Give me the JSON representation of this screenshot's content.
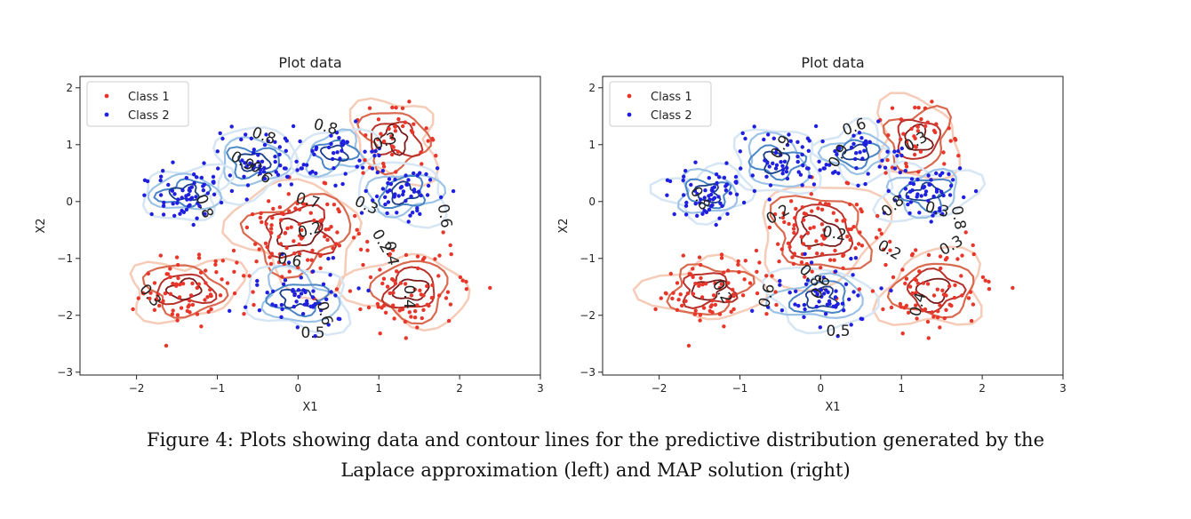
{
  "chart_data": [
    {
      "type": "scatter",
      "title": "Plot data",
      "xlabel": "X1",
      "ylabel": "X2",
      "xlim": [
        -2.7,
        3.0
      ],
      "ylim": [
        -3.05,
        2.2
      ],
      "xticks": [
        -2,
        -1,
        0,
        1,
        2,
        3
      ],
      "yticks": [
        -3,
        -2,
        -1,
        0,
        1,
        2
      ],
      "tick_labels_x": [
        "−2",
        "−1",
        "0",
        "1",
        "2",
        "3"
      ],
      "tick_labels_y": [
        "−3",
        "−2",
        "−1",
        "0",
        "1",
        "2"
      ],
      "legend": {
        "placement": "top-left",
        "entries": [
          {
            "name": "Class 1",
            "color": "#e8372a"
          },
          {
            "name": "Class 2",
            "color": "#1f1fe0"
          }
        ]
      },
      "series": [
        {
          "name": "Class 1",
          "color": "#e8372a",
          "clusters": [
            {
              "cx": -1.4,
              "cy": -1.55,
              "sx": 0.35,
              "sy": 0.3,
              "n": 70
            },
            {
              "cx": 0.0,
              "cy": -0.55,
              "sx": 0.45,
              "sy": 0.45,
              "n": 95
            },
            {
              "cx": 1.4,
              "cy": -1.55,
              "sx": 0.35,
              "sy": 0.35,
              "n": 70
            },
            {
              "cx": 1.2,
              "cy": 1.1,
              "sx": 0.3,
              "sy": 0.35,
              "n": 40
            }
          ]
        },
        {
          "name": "Class 2",
          "color": "#1f1fe0",
          "clusters": [
            {
              "cx": -0.55,
              "cy": 0.7,
              "sx": 0.3,
              "sy": 0.3,
              "n": 55
            },
            {
              "cx": 0.45,
              "cy": 0.85,
              "sx": 0.25,
              "sy": 0.25,
              "n": 40
            },
            {
              "cx": -1.4,
              "cy": 0.15,
              "sx": 0.28,
              "sy": 0.25,
              "n": 55
            },
            {
              "cx": 1.3,
              "cy": 0.15,
              "sx": 0.3,
              "sy": 0.28,
              "n": 55
            },
            {
              "cx": 0.0,
              "cy": -1.7,
              "sx": 0.35,
              "sy": 0.3,
              "n": 55
            }
          ]
        }
      ],
      "contour_labels": [
        "0.8",
        "0.8",
        "0.3",
        "0.9",
        "0.6",
        "0.8",
        "0.7",
        "0.3",
        "0.6",
        "0.2",
        "0.2",
        "0.6",
        "0.3",
        "0.4",
        "0.6",
        "0.5",
        "0.4"
      ]
    },
    {
      "type": "scatter",
      "title": "Plot data",
      "xlabel": "X1",
      "ylabel": "X2",
      "xlim": [
        -2.7,
        3.0
      ],
      "ylim": [
        -3.05,
        2.2
      ],
      "xticks": [
        -2,
        -1,
        0,
        1,
        2,
        3
      ],
      "yticks": [
        -3,
        -2,
        -1,
        0,
        1,
        2
      ],
      "tick_labels_x": [
        "−2",
        "−1",
        "0",
        "1",
        "2",
        "3"
      ],
      "tick_labels_y": [
        "−3",
        "−2",
        "−1",
        "0",
        "1",
        "2"
      ],
      "legend": {
        "placement": "top-left",
        "entries": [
          {
            "name": "Class 1",
            "color": "#e8372a"
          },
          {
            "name": "Class 2",
            "color": "#1f1fe0"
          }
        ]
      },
      "series": [
        {
          "name": "Class 1",
          "color": "#e8372a",
          "clusters": [
            {
              "cx": -1.4,
              "cy": -1.55,
              "sx": 0.35,
              "sy": 0.3,
              "n": 70
            },
            {
              "cx": 0.0,
              "cy": -0.55,
              "sx": 0.45,
              "sy": 0.45,
              "n": 95
            },
            {
              "cx": 1.4,
              "cy": -1.55,
              "sx": 0.35,
              "sy": 0.35,
              "n": 70
            },
            {
              "cx": 1.2,
              "cy": 1.1,
              "sx": 0.3,
              "sy": 0.35,
              "n": 40
            }
          ]
        },
        {
          "name": "Class 2",
          "color": "#1f1fe0",
          "clusters": [
            {
              "cx": -0.55,
              "cy": 0.7,
              "sx": 0.3,
              "sy": 0.3,
              "n": 55
            },
            {
              "cx": 0.45,
              "cy": 0.85,
              "sx": 0.25,
              "sy": 0.25,
              "n": 40
            },
            {
              "cx": -1.4,
              "cy": 0.15,
              "sx": 0.28,
              "sy": 0.25,
              "n": 55
            },
            {
              "cx": 1.3,
              "cy": 0.15,
              "sx": 0.3,
              "sy": 0.28,
              "n": 55
            },
            {
              "cx": 0.0,
              "cy": -1.7,
              "sx": 0.35,
              "sy": 0.3,
              "n": 55
            }
          ]
        }
      ],
      "contour_labels": [
        "0.6",
        "0.9",
        "0.9",
        "0.8",
        "0.3",
        "0.8",
        "0.2",
        "0.3",
        "0.8",
        "0.2",
        "0.2",
        "0.3",
        "0.8",
        "0.6",
        "0.6",
        "0.4",
        "0.5",
        "0.2"
      ]
    }
  ],
  "caption": {
    "line1": "Figure 4: Plots showing data and contour lines for the predictive distribution generated by the",
    "line2": "Laplace approximation (left) and MAP solution (right)"
  }
}
